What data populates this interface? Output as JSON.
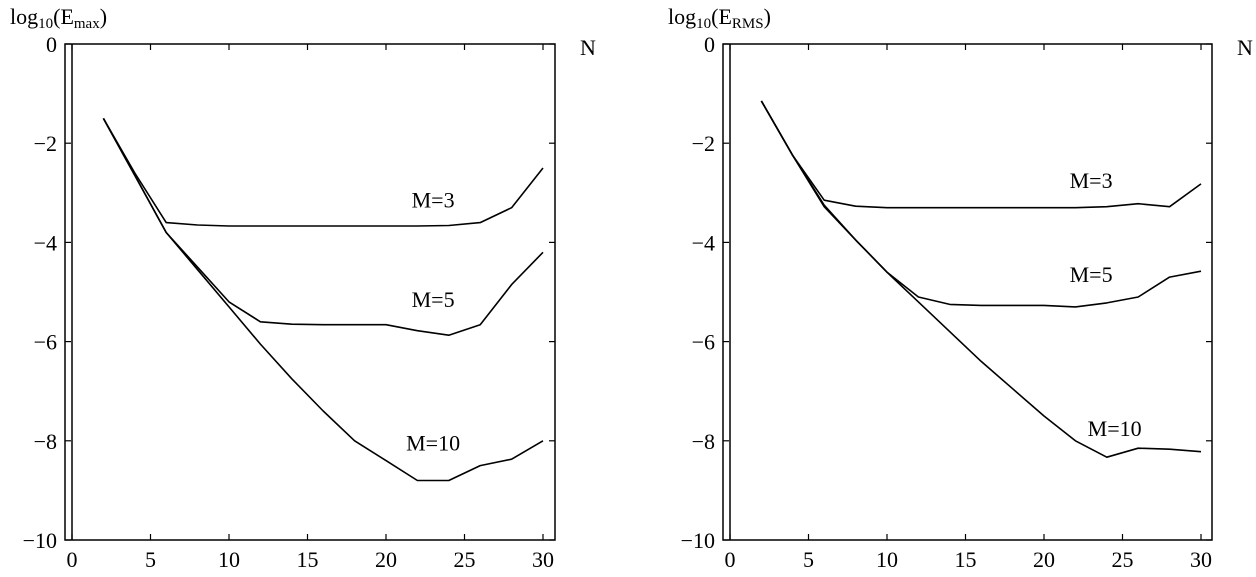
{
  "chart_data": [
    {
      "type": "line",
      "title": "",
      "ylabel": "log10(Emax)",
      "ylabel_parts": {
        "base": "log",
        "sub1": "10",
        "open": "(E",
        "sub2": "max",
        "close": ")"
      },
      "xlabel": "N",
      "xlim": [
        0,
        30
      ],
      "ylim": [
        -10,
        0
      ],
      "x_ticks": [
        0,
        5,
        10,
        15,
        20,
        25,
        30
      ],
      "y_ticks": [
        0,
        -2,
        -4,
        -6,
        -8,
        -10
      ],
      "x_tick_labels": [
        "0",
        "5",
        "10",
        "15",
        "20",
        "25",
        "30"
      ],
      "y_tick_labels": [
        "0",
        "−2",
        "−4",
        "−6",
        "−8",
        "−10"
      ],
      "grid": false,
      "series": [
        {
          "name": "M=3",
          "label_at": [
            23,
            -3.3
          ],
          "x": [
            2,
            4,
            6,
            8,
            10,
            12,
            14,
            16,
            18,
            20,
            22,
            24,
            26,
            28,
            30
          ],
          "y": [
            -1.5,
            -2.6,
            -3.6,
            -3.65,
            -3.67,
            -3.67,
            -3.67,
            -3.67,
            -3.67,
            -3.67,
            -3.67,
            -3.66,
            -3.6,
            -3.3,
            -2.5
          ]
        },
        {
          "name": "M=5",
          "label_at": [
            23,
            -5.3
          ],
          "x": [
            2,
            4,
            6,
            8,
            10,
            12,
            14,
            16,
            18,
            20,
            22,
            24,
            26,
            28,
            30
          ],
          "y": [
            -1.5,
            -2.65,
            -3.8,
            -4.5,
            -5.2,
            -5.6,
            -5.65,
            -5.66,
            -5.66,
            -5.66,
            -5.78,
            -5.87,
            -5.66,
            -4.85,
            -4.2
          ]
        },
        {
          "name": "M=10",
          "label_at": [
            23,
            -8.2
          ],
          "x": [
            2,
            4,
            6,
            8,
            10,
            12,
            14,
            16,
            18,
            20,
            22,
            24,
            26,
            28,
            30
          ],
          "y": [
            -1.5,
            -2.65,
            -3.8,
            -4.55,
            -5.3,
            -6.05,
            -6.75,
            -7.4,
            -8.0,
            -8.4,
            -8.8,
            -8.8,
            -8.5,
            -8.37,
            -8.0
          ]
        }
      ]
    },
    {
      "type": "line",
      "title": "",
      "ylabel": "log10(ERMS)",
      "ylabel_parts": {
        "base": "log",
        "sub1": "10",
        "open": "(E",
        "sub2": "RMS",
        "close": ")"
      },
      "xlabel": "N",
      "xlim": [
        0,
        30
      ],
      "ylim": [
        -10,
        0
      ],
      "x_ticks": [
        0,
        5,
        10,
        15,
        20,
        25,
        30
      ],
      "y_ticks": [
        0,
        -2,
        -4,
        -6,
        -8,
        -10
      ],
      "x_tick_labels": [
        "0",
        "5",
        "10",
        "15",
        "20",
        "25",
        "30"
      ],
      "y_tick_labels": [
        "0",
        "−2",
        "−4",
        "−6",
        "−8",
        "−10"
      ],
      "grid": false,
      "series": [
        {
          "name": "M=3",
          "label_at": [
            23,
            -2.9
          ],
          "x": [
            2,
            4,
            6,
            8,
            10,
            12,
            14,
            16,
            18,
            20,
            22,
            24,
            26,
            28,
            30
          ],
          "y": [
            -1.15,
            -2.25,
            -3.15,
            -3.27,
            -3.3,
            -3.3,
            -3.3,
            -3.3,
            -3.3,
            -3.3,
            -3.3,
            -3.28,
            -3.22,
            -3.28,
            -2.82
          ]
        },
        {
          "name": "M=5",
          "label_at": [
            23,
            -4.8
          ],
          "x": [
            2,
            4,
            6,
            8,
            10,
            12,
            14,
            16,
            18,
            20,
            22,
            24,
            26,
            28,
            30
          ],
          "y": [
            -1.15,
            -2.25,
            -3.25,
            -3.95,
            -4.6,
            -5.1,
            -5.25,
            -5.27,
            -5.27,
            -5.27,
            -5.3,
            -5.22,
            -5.1,
            -4.7,
            -4.58
          ]
        },
        {
          "name": "M=10",
          "label_at": [
            24.5,
            -7.9
          ],
          "x": [
            2,
            4,
            6,
            8,
            10,
            12,
            14,
            16,
            18,
            20,
            22,
            24,
            26,
            28,
            30
          ],
          "y": [
            -1.15,
            -2.25,
            -3.28,
            -3.95,
            -4.6,
            -5.2,
            -5.8,
            -6.4,
            -6.95,
            -7.5,
            -8.0,
            -8.33,
            -8.15,
            -8.17,
            -8.22
          ]
        }
      ]
    }
  ]
}
